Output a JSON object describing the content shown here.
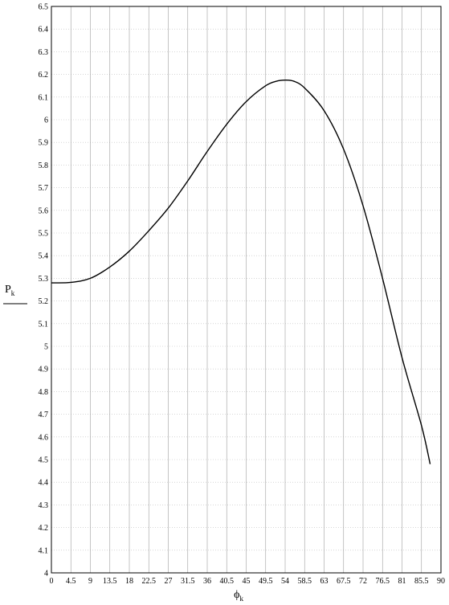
{
  "chart_data": {
    "type": "line",
    "title": "",
    "xlabel": "ϕ",
    "xlabel_subscript": "k",
    "ylabel": "P",
    "ylabel_subscript": "k",
    "xlim": [
      0,
      90
    ],
    "ylim": [
      4,
      6.5
    ],
    "x_ticks": [
      "0",
      "4.5",
      "9",
      "13.5",
      "18",
      "22.5",
      "27",
      "31.5",
      "36",
      "40.5",
      "45",
      "49.5",
      "54",
      "58.5",
      "63",
      "67.5",
      "72",
      "76.5",
      "81",
      "85.5",
      "90"
    ],
    "y_ticks": [
      "4",
      "4.1",
      "4.2",
      "4.3",
      "4.4",
      "4.5",
      "4.6",
      "4.7",
      "4.8",
      "4.9",
      "5",
      "5.1",
      "5.2",
      "5.3",
      "5.4",
      "5.5",
      "5.6",
      "5.7",
      "5.8",
      "5.9",
      "6",
      "6.1",
      "6.2",
      "6.3",
      "6.4",
      "6.5"
    ],
    "grid": true,
    "series": [
      {
        "name": "",
        "x": [
          0,
          4.5,
          9,
          13.5,
          18,
          22.5,
          27,
          31.5,
          36,
          40.5,
          45,
          49.5,
          52,
          54,
          56,
          58.5,
          63,
          67.5,
          72,
          76.5,
          81,
          85.5,
          87.5
        ],
        "y": [
          5.28,
          5.282,
          5.3,
          5.35,
          5.42,
          5.51,
          5.61,
          5.73,
          5.86,
          5.98,
          6.08,
          6.15,
          6.17,
          6.175,
          6.17,
          6.14,
          6.04,
          5.87,
          5.62,
          5.3,
          4.95,
          4.65,
          4.48
        ]
      }
    ]
  }
}
